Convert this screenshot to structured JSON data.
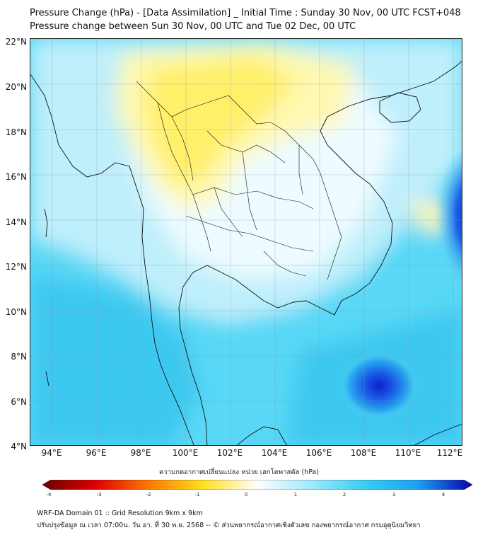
{
  "header": {
    "title_line1": "Pressure Change (hPa) - [Data Assimilation] _ Initial Time : Sunday 30 Nov, 00 UTC FCST+048",
    "title_line2": "Pressure change between Sun 30 Nov, 00 UTC and Tue 02 Dec, 00 UTC"
  },
  "map": {
    "lat_labels": [
      "22°N",
      "20°N",
      "18°N",
      "16°N",
      "14°N",
      "12°N",
      "10°N",
      "8°N",
      "6°N",
      "4°N"
    ],
    "lon_labels": [
      "94°E",
      "96°E",
      "98°E",
      "100°E",
      "102°E",
      "104°E",
      "106°E",
      "108°E",
      "110°E",
      "112°E"
    ]
  },
  "colorbar": {
    "title": "ความกดอากาศเปลี่ยนแปลง หน่วย เฮกโตพาสคัล (hPa)",
    "ticks": [
      "-4",
      "-3",
      "-2",
      "-1",
      "0",
      "1",
      "2",
      "3",
      "4"
    ],
    "colors": {
      "neg4": "#6b0000",
      "neg3": "#e00000",
      "neg2": "#ff7a00",
      "neg1": "#ffe020",
      "zero": "#ffffff",
      "pos1": "#9fe9fb",
      "pos2": "#38cdf2",
      "pos3": "#1aa0f0",
      "pos4": "#0a00b0"
    }
  },
  "footer": {
    "line1": "WRF-DA Domain 01 :: Grid Resolution 9km x 9km",
    "line2": "ปรับปรุงข้อมูล ณ เวลา 07:00น. วัน อา. ที่ 30 พ.ย. 2568 -- © ส่วนพยากรณ์อากาศเชิงตัวเลข กองพยากรณ์อากาศ กรมอุตุนิยมวิทยา"
  }
}
